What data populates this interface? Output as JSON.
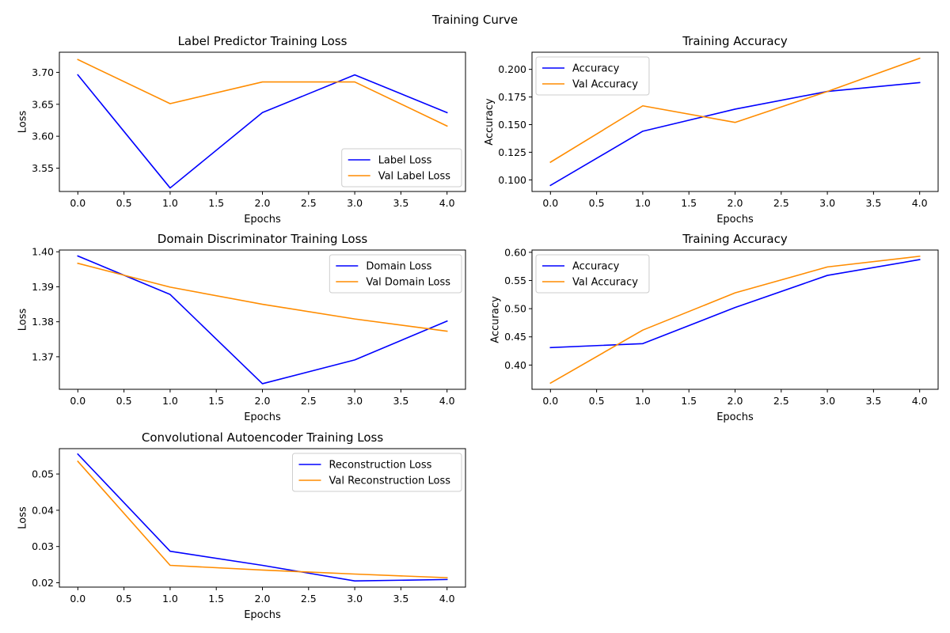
{
  "figure": {
    "title": "Training Curve"
  },
  "colors": {
    "blue": "#0000ff",
    "orange": "#ff8c00"
  },
  "chart_data": [
    {
      "type": "line",
      "title": "Label Predictor Training Loss",
      "xlabel": "Epochs",
      "ylabel": "Loss",
      "x": [
        0,
        1,
        2,
        3,
        4
      ],
      "xlim": [
        -0.2,
        4.2
      ],
      "ylim": [
        3.5135,
        3.7315
      ],
      "xticks": [
        0,
        0.5,
        1,
        1.5,
        2,
        2.5,
        3,
        3.5,
        4
      ],
      "xtick_labels": [
        "0.0",
        "0.5",
        "1.0",
        "1.5",
        "2.0",
        "2.5",
        "3.0",
        "3.5",
        "4.0"
      ],
      "yticks": [
        3.55,
        3.6,
        3.65,
        3.7
      ],
      "ytick_labels": [
        "3.55",
        "3.60",
        "3.65",
        "3.70"
      ],
      "legend_loc": "lower-right",
      "grid": false,
      "series": [
        {
          "name": "Label Loss",
          "color": "#0000ff",
          "values": [
            3.696,
            3.519,
            3.637,
            3.696,
            3.637
          ]
        },
        {
          "name": "Val Label Loss",
          "color": "#ff8c00",
          "values": [
            3.72,
            3.651,
            3.685,
            3.685,
            3.616
          ]
        }
      ]
    },
    {
      "type": "line",
      "title": "Training Accuracy",
      "xlabel": "Epochs",
      "ylabel": "Accuracy",
      "x": [
        0,
        1,
        2,
        3,
        4
      ],
      "xlim": [
        -0.2,
        4.2
      ],
      "ylim": [
        0.0895,
        0.2155
      ],
      "xticks": [
        0,
        0.5,
        1,
        1.5,
        2,
        2.5,
        3,
        3.5,
        4
      ],
      "xtick_labels": [
        "0.0",
        "0.5",
        "1.0",
        "1.5",
        "2.0",
        "2.5",
        "3.0",
        "3.5",
        "4.0"
      ],
      "yticks": [
        0.1,
        0.125,
        0.15,
        0.175,
        0.2
      ],
      "ytick_labels": [
        "0.100",
        "0.125",
        "0.150",
        "0.175",
        "0.200"
      ],
      "legend_loc": "upper-left",
      "grid": false,
      "series": [
        {
          "name": "Accuracy",
          "color": "#0000ff",
          "values": [
            0.095,
            0.144,
            0.164,
            0.18,
            0.188
          ]
        },
        {
          "name": "Val Accuracy",
          "color": "#ff8c00",
          "values": [
            0.116,
            0.167,
            0.152,
            0.18,
            0.21
          ]
        }
      ]
    },
    {
      "type": "line",
      "title": "Domain Discriminator Training Loss",
      "xlabel": "Epochs",
      "ylabel": "Loss",
      "x": [
        0,
        1,
        2,
        3,
        4
      ],
      "xlim": [
        -0.2,
        4.2
      ],
      "ylim": [
        1.3607,
        1.4005
      ],
      "xticks": [
        0,
        0.5,
        1,
        1.5,
        2,
        2.5,
        3,
        3.5,
        4
      ],
      "xtick_labels": [
        "0.0",
        "0.5",
        "1.0",
        "1.5",
        "2.0",
        "2.5",
        "3.0",
        "3.5",
        "4.0"
      ],
      "yticks": [
        1.37,
        1.38,
        1.39,
        1.4
      ],
      "ytick_labels": [
        "1.37",
        "1.38",
        "1.39",
        "1.40"
      ],
      "legend_loc": "upper-right",
      "grid": false,
      "series": [
        {
          "name": "Domain Loss",
          "color": "#0000ff",
          "values": [
            1.3988,
            1.3878,
            1.3623,
            1.3691,
            1.3802
          ]
        },
        {
          "name": "Val Domain Loss",
          "color": "#ff8c00",
          "values": [
            1.3967,
            1.3899,
            1.385,
            1.3808,
            1.3773
          ]
        }
      ]
    },
    {
      "type": "line",
      "title": "Training Accuracy",
      "xlabel": "Epochs",
      "ylabel": "Accuracy",
      "x": [
        0,
        1,
        2,
        3,
        4
      ],
      "xlim": [
        -0.2,
        4.2
      ],
      "ylim": [
        0.357,
        0.604
      ],
      "xticks": [
        0,
        0.5,
        1,
        1.5,
        2,
        2.5,
        3,
        3.5,
        4
      ],
      "xtick_labels": [
        "0.0",
        "0.5",
        "1.0",
        "1.5",
        "2.0",
        "2.5",
        "3.0",
        "3.5",
        "4.0"
      ],
      "yticks": [
        0.4,
        0.45,
        0.5,
        0.55,
        0.6
      ],
      "ytick_labels": [
        "0.40",
        "0.45",
        "0.50",
        "0.55",
        "0.60"
      ],
      "legend_loc": "upper-left",
      "grid": false,
      "series": [
        {
          "name": "Accuracy",
          "color": "#0000ff",
          "values": [
            0.431,
            0.438,
            0.502,
            0.559,
            0.587
          ]
        },
        {
          "name": "Val Accuracy",
          "color": "#ff8c00",
          "values": [
            0.368,
            0.462,
            0.528,
            0.574,
            0.593
          ]
        }
      ]
    },
    {
      "type": "line",
      "title": "Convolutional Autoencoder Training Loss",
      "xlabel": "Epochs",
      "ylabel": "Loss",
      "x": [
        0,
        1,
        2,
        3,
        4
      ],
      "xlim": [
        -0.2,
        4.2
      ],
      "ylim": [
        0.0188,
        0.057
      ],
      "xticks": [
        0,
        0.5,
        1,
        1.5,
        2,
        2.5,
        3,
        3.5,
        4
      ],
      "xtick_labels": [
        "0.0",
        "0.5",
        "1.0",
        "1.5",
        "2.0",
        "2.5",
        "3.0",
        "3.5",
        "4.0"
      ],
      "yticks": [
        0.02,
        0.03,
        0.04,
        0.05
      ],
      "ytick_labels": [
        "0.02",
        "0.03",
        "0.04",
        "0.05"
      ],
      "legend_loc": "upper-right",
      "grid": false,
      "series": [
        {
          "name": "Reconstruction Loss",
          "color": "#0000ff",
          "values": [
            0.0555,
            0.0287,
            0.0248,
            0.0205,
            0.0209
          ]
        },
        {
          "name": "Val Reconstruction Loss",
          "color": "#ff8c00",
          "values": [
            0.0535,
            0.0248,
            0.0235,
            0.0224,
            0.0214
          ]
        }
      ]
    }
  ]
}
